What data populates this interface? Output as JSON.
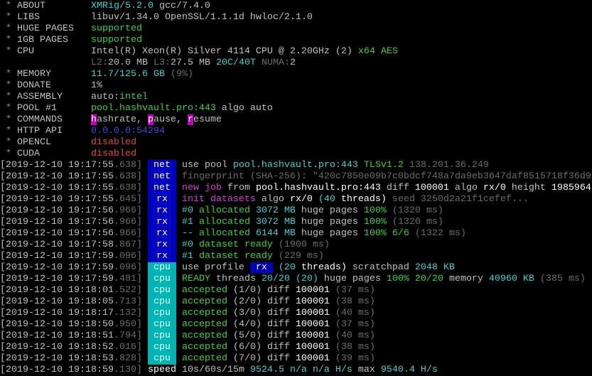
{
  "colors": {
    "green": "#3cd23c",
    "cyan": "#3cd0d0",
    "gray": "#6c6c6c",
    "magenta": "#d040d0",
    "red": "#e04848",
    "blue": "#3c4ce0",
    "tag_net_rx": "#0000c0",
    "tag_cpu": "#00b4b4"
  },
  "header": [
    {
      "label": "ABOUT",
      "value": [
        [
          "XMRig/5.2.0",
          "c"
        ],
        [
          " gcc/7.4.0",
          "w"
        ]
      ]
    },
    {
      "label": "LIBS",
      "value": [
        [
          "libuv/1.34.0 OpenSSL/1.1.1d hwloc/2.1.0",
          "w"
        ]
      ]
    },
    {
      "label": "HUGE PAGES",
      "value": [
        [
          "supported",
          "g"
        ]
      ]
    },
    {
      "label": "1GB PAGES",
      "value": [
        [
          "supported",
          "g"
        ]
      ]
    },
    {
      "label": "CPU",
      "value": [
        [
          "Intel(R) Xeon(R) Silver 4114 CPU @ 2.20GHz (2)",
          "w"
        ],
        [
          " x64 AES",
          "g"
        ]
      ]
    },
    {
      "label": "",
      "value": [
        [
          "L2:",
          "k"
        ],
        [
          "20.0 MB ",
          "w"
        ],
        [
          "L3:",
          "k"
        ],
        [
          "27.5 MB ",
          "w"
        ],
        [
          "20C/40T",
          "c"
        ],
        [
          " NUMA:",
          "k"
        ],
        [
          "2",
          "w"
        ]
      ]
    },
    {
      "label": "MEMORY",
      "value": [
        [
          "11.7/125.6 GB",
          "c"
        ],
        [
          " (9%)",
          "k"
        ]
      ]
    },
    {
      "label": "DONATE",
      "value": [
        [
          "1%",
          "w"
        ]
      ]
    },
    {
      "label": "ASSEMBLY",
      "value": [
        [
          "auto:",
          "w"
        ],
        [
          "intel",
          "g"
        ]
      ]
    },
    {
      "label": "POOL #1",
      "value": [
        [
          "pool.hashvault.pro:443",
          "g"
        ],
        [
          " algo auto",
          "w"
        ]
      ]
    },
    {
      "label": "COMMANDS",
      "value": [
        [
          "h",
          "hl"
        ],
        [
          "ashrate, ",
          "w"
        ],
        [
          "p",
          "hl"
        ],
        [
          "ause, ",
          "w"
        ],
        [
          "r",
          "hl"
        ],
        [
          "esume",
          "w"
        ]
      ]
    },
    {
      "label": "HTTP API",
      "value": [
        [
          "0.0.0.0:54294",
          "b"
        ]
      ]
    },
    {
      "label": "OPENCL",
      "value": [
        [
          "disabled",
          "r"
        ]
      ]
    },
    {
      "label": "CUDA",
      "value": [
        [
          "disabled",
          "r"
        ]
      ]
    }
  ],
  "log": [
    {
      "ts": "2019-12-10 19:17:55",
      "ms": ".638",
      "tag": "net",
      "msg": [
        [
          "use pool ",
          "w"
        ],
        [
          "pool.hashvault.pro:443 ",
          "c"
        ],
        [
          "TLSv1.2 ",
          "g"
        ],
        [
          "138.201.36.249",
          "k"
        ]
      ]
    },
    {
      "ts": "2019-12-10 19:17:55",
      "ms": ".638",
      "tag": "net",
      "msg": [
        [
          "fingerprint (SHA-256): \"420c7850e09b7c0bdcf748a7da9eb3647daf8515718f36d9",
          "k"
        ]
      ]
    },
    {
      "ts": "2019-12-10 19:17:55",
      "ms": ".638",
      "tag": "net",
      "msg": [
        [
          "new job",
          "m"
        ],
        [
          " from ",
          "w"
        ],
        [
          "pool.hashvault.pro:443",
          "W"
        ],
        [
          " diff ",
          "w"
        ],
        [
          "100001",
          "W"
        ],
        [
          " algo ",
          "w"
        ],
        [
          "rx/0",
          "W"
        ],
        [
          " height ",
          "w"
        ],
        [
          "1985964",
          "W"
        ]
      ]
    },
    {
      "ts": "2019-12-10 19:17:55",
      "ms": ".645",
      "tag": "rx",
      "msg": [
        [
          "init datasets",
          "m"
        ],
        [
          " algo ",
          "w"
        ],
        [
          "rx/0 ",
          "W"
        ],
        [
          "(40",
          "c"
        ],
        [
          " threads)",
          "W"
        ],
        [
          " seed 3250d2a21f1cefef...",
          "k"
        ]
      ]
    },
    {
      "ts": "2019-12-10 19:17:56",
      "ms": ".966",
      "tag": "rx",
      "msg": [
        [
          "#0 ",
          "c"
        ],
        [
          "allocated ",
          "g"
        ],
        [
          "3072 MB",
          "c"
        ],
        [
          " huge pages ",
          "w"
        ],
        [
          "100%",
          "g"
        ],
        [
          " (1320 ms)",
          "k"
        ]
      ]
    },
    {
      "ts": "2019-12-10 19:17:56",
      "ms": ".966",
      "tag": "rx",
      "msg": [
        [
          "#1 ",
          "c"
        ],
        [
          "allocated ",
          "g"
        ],
        [
          "3072 MB",
          "c"
        ],
        [
          " huge pages ",
          "w"
        ],
        [
          "100%",
          "g"
        ],
        [
          " (1320 ms)",
          "k"
        ]
      ]
    },
    {
      "ts": "2019-12-10 19:17:56",
      "ms": ".966",
      "tag": "rx",
      "msg": [
        [
          "-- ",
          "c"
        ],
        [
          "allocated ",
          "g"
        ],
        [
          "6144 MB",
          "c"
        ],
        [
          " huge pages ",
          "w"
        ],
        [
          "100% 6/6",
          "g"
        ],
        [
          " (1322 ms)",
          "k"
        ]
      ]
    },
    {
      "ts": "2019-12-10 19:17:58",
      "ms": ".867",
      "tag": "rx",
      "msg": [
        [
          "#0 ",
          "c"
        ],
        [
          "dataset ready",
          "g"
        ],
        [
          " (1900 ms)",
          "k"
        ]
      ]
    },
    {
      "ts": "2019-12-10 19:17:59",
      "ms": ".096",
      "tag": "rx",
      "msg": [
        [
          "#1 ",
          "c"
        ],
        [
          "dataset ready",
          "g"
        ],
        [
          " (229 ms)",
          "k"
        ]
      ]
    },
    {
      "ts": "2019-12-10 19:17:59",
      "ms": ".096",
      "tag": "cpu",
      "msg": [
        [
          "use profile ",
          "w"
        ],
        [
          " rx ",
          "tagrx"
        ],
        [
          " (20",
          "c"
        ],
        [
          " threads)",
          "W"
        ],
        [
          " scratchpad ",
          "w"
        ],
        [
          "2048 KB",
          "c"
        ]
      ]
    },
    {
      "ts": "2019-12-10 19:17:59",
      "ms": ".481",
      "tag": "cpu",
      "msg": [
        [
          "READY",
          "g"
        ],
        [
          " threads ",
          "w"
        ],
        [
          "20/20 (20)",
          "c"
        ],
        [
          " huge pages ",
          "w"
        ],
        [
          "100% 20/20",
          "g"
        ],
        [
          " memory ",
          "w"
        ],
        [
          "40960 KB",
          "c"
        ],
        [
          " (385 ms)",
          "k"
        ]
      ]
    },
    {
      "ts": "2019-12-10 19:18:01",
      "ms": ".522",
      "tag": "cpu",
      "msg": [
        [
          "accepted",
          "g"
        ],
        [
          " (1/0) diff ",
          "w"
        ],
        [
          "100001",
          "W"
        ],
        [
          " (37 ms)",
          "k"
        ]
      ]
    },
    {
      "ts": "2019-12-10 19:18:05",
      "ms": ".713",
      "tag": "cpu",
      "msg": [
        [
          "accepted",
          "g"
        ],
        [
          " (2/0) diff ",
          "w"
        ],
        [
          "100001",
          "W"
        ],
        [
          " (38 ms)",
          "k"
        ]
      ]
    },
    {
      "ts": "2019-12-10 19:18:17",
      "ms": ".132",
      "tag": "cpu",
      "msg": [
        [
          "accepted",
          "g"
        ],
        [
          " (3/0) diff ",
          "w"
        ],
        [
          "100001",
          "W"
        ],
        [
          " (40 ms)",
          "k"
        ]
      ]
    },
    {
      "ts": "2019-12-10 19:18:50",
      "ms": ".950",
      "tag": "cpu",
      "msg": [
        [
          "accepted",
          "g"
        ],
        [
          " (4/0) diff ",
          "w"
        ],
        [
          "100001",
          "W"
        ],
        [
          " (37 ms)",
          "k"
        ]
      ]
    },
    {
      "ts": "2019-12-10 19:18:51",
      "ms": ".794",
      "tag": "cpu",
      "msg": [
        [
          "accepted",
          "g"
        ],
        [
          " (5/0) diff ",
          "w"
        ],
        [
          "100001",
          "W"
        ],
        [
          " (40 ms)",
          "k"
        ]
      ]
    },
    {
      "ts": "2019-12-10 19:18:52",
      "ms": ".016",
      "tag": "cpu",
      "msg": [
        [
          "accepted",
          "g"
        ],
        [
          " (6/0) diff ",
          "w"
        ],
        [
          "100001",
          "W"
        ],
        [
          " (38 ms)",
          "k"
        ]
      ]
    },
    {
      "ts": "2019-12-10 19:18:53",
      "ms": ".828",
      "tag": "cpu",
      "msg": [
        [
          "accepted",
          "g"
        ],
        [
          " (7/0) diff ",
          "w"
        ],
        [
          "100001",
          "W"
        ],
        [
          " (39 ms)",
          "k"
        ]
      ]
    },
    {
      "ts": "2019-12-10 19:18:59",
      "ms": ".130",
      "tag": "",
      "msg": [
        [
          "speed",
          "W"
        ],
        [
          " 10s/60s/15m ",
          "w"
        ],
        [
          "9524.5 n/a n/a H/s",
          "c"
        ],
        [
          " max ",
          "w"
        ],
        [
          "9540.4 H/s",
          "c"
        ]
      ]
    }
  ]
}
